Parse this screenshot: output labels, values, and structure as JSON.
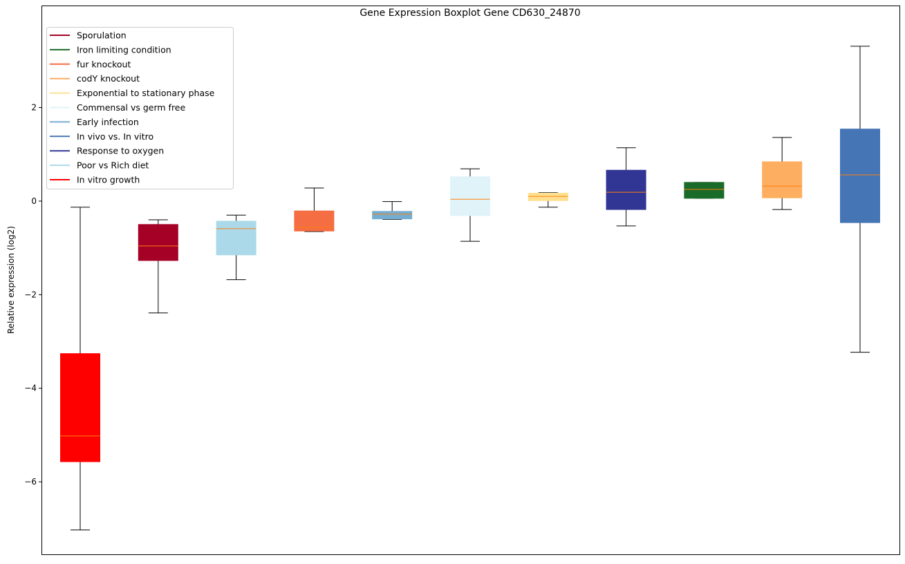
{
  "chart_data": {
    "type": "boxplot",
    "title": "Gene Expression Boxplot Gene CD630_24870",
    "xlabel": "",
    "ylabel": "Relative expression (log2)",
    "ylim": [
      -7.55,
      4.18
    ],
    "yticks": [
      2,
      0,
      -2,
      -4,
      -6
    ],
    "ytick_labels": [
      "2",
      "0",
      "−2",
      "−4",
      "−6"
    ],
    "grid": false,
    "legend_position": "top-left",
    "median_color": "#ff7f0e",
    "legend": [
      {
        "label": "Sporulation",
        "color": "#a50026"
      },
      {
        "label": "Iron limiting condition",
        "color": "#1a6a2a"
      },
      {
        "label": "fur knockout",
        "color": "#f46d43"
      },
      {
        "label": "codY knockout",
        "color": "#fdae61"
      },
      {
        "label": "Exponential to stationary phase",
        "color": "#fee090"
      },
      {
        "label": "Commensal vs germ free",
        "color": "#e0f3f8"
      },
      {
        "label": "Early infection",
        "color": "#74add1"
      },
      {
        "label": "In vivo vs. In vitro",
        "color": "#4575b4"
      },
      {
        "label": "Response to oxygen",
        "color": "#313695"
      },
      {
        "label": "Poor vs Rich diet",
        "color": "#abd9e9"
      },
      {
        "label": "In vitro growth",
        "color": "#ff0000"
      }
    ],
    "boxes": [
      {
        "name": "In vitro growth",
        "color": "#ff0000",
        "whislo": -7.03,
        "q1": -5.57,
        "med": -5.02,
        "q3": -3.26,
        "whishi": -0.13
      },
      {
        "name": "Sporulation",
        "color": "#a50026",
        "whislo": -2.39,
        "q1": -1.27,
        "med": -0.96,
        "q3": -0.5,
        "whishi": -0.4
      },
      {
        "name": "Poor vs Rich diet",
        "color": "#abd9e9",
        "whislo": -1.68,
        "q1": -1.15,
        "med": -0.59,
        "q3": -0.43,
        "whishi": -0.3
      },
      {
        "name": "fur knockout",
        "color": "#f46d43",
        "whislo": -0.65,
        "q1": -0.64,
        "med": -0.56,
        "q3": -0.21,
        "whishi": 0.28
      },
      {
        "name": "Early infection",
        "color": "#74add1",
        "whislo": -0.39,
        "q1": -0.38,
        "med": -0.28,
        "q3": -0.22,
        "whishi": -0.01
      },
      {
        "name": "Commensal vs germ free",
        "color": "#e0f3f8",
        "whislo": -0.86,
        "q1": -0.31,
        "med": 0.04,
        "q3": 0.52,
        "whishi": 0.69
      },
      {
        "name": "Exponential to stationary phase",
        "color": "#fee090",
        "whislo": -0.13,
        "q1": 0.01,
        "med": 0.1,
        "q3": 0.17,
        "whishi": 0.18
      },
      {
        "name": "Response to oxygen",
        "color": "#313695",
        "whislo": -0.53,
        "q1": -0.18,
        "med": 0.19,
        "q3": 0.66,
        "whishi": 1.14
      },
      {
        "name": "Iron limiting condition",
        "color": "#1a6a2a",
        "whislo": 0.06,
        "q1": 0.06,
        "med": 0.25,
        "q3": 0.4,
        "whishi": 0.4
      },
      {
        "name": "codY knockout",
        "color": "#fdae61",
        "whislo": -0.18,
        "q1": 0.07,
        "med": 0.32,
        "q3": 0.84,
        "whishi": 1.36
      },
      {
        "name": "In vivo vs. In vitro",
        "color": "#4575b4",
        "whislo": -3.23,
        "q1": -0.46,
        "med": 0.56,
        "q3": 1.54,
        "whishi": 3.31
      }
    ]
  }
}
